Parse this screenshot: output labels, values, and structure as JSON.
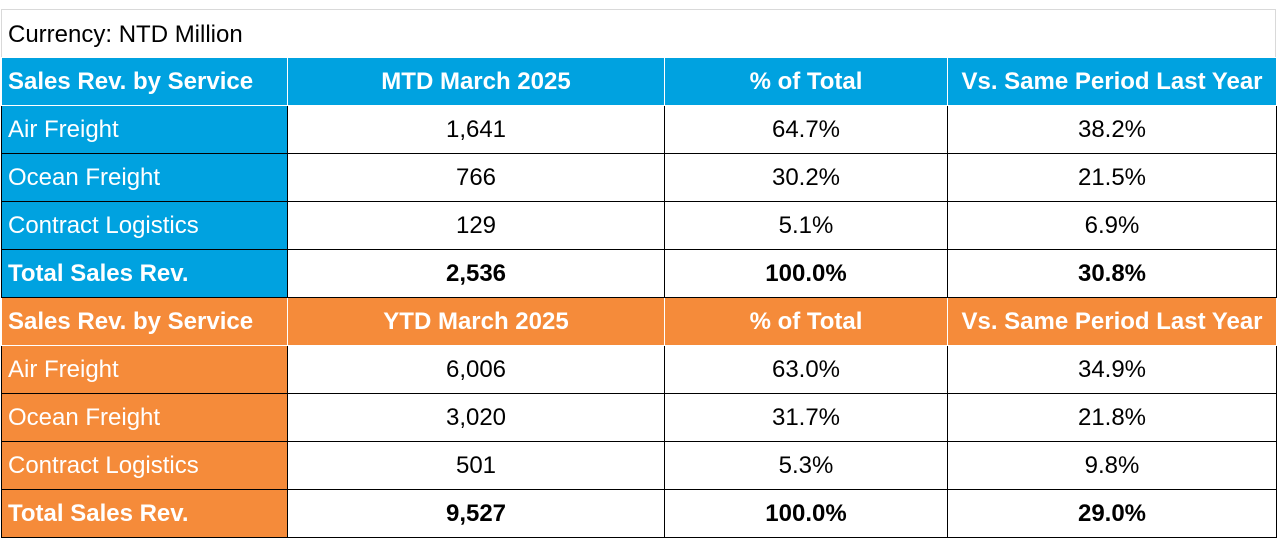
{
  "currency_note": "Currency: NTD Million",
  "colors": {
    "mtd_accent": "#00a2e0",
    "ytd_accent": "#f58b3a"
  },
  "mtd": {
    "headers": [
      "Sales Rev. by Service",
      "MTD March 2025",
      "% of Total",
      "Vs. Same Period Last Year"
    ],
    "rows": [
      {
        "service": "Air Freight",
        "value": "1,641",
        "pct": "64.7%",
        "yoy": "38.2%"
      },
      {
        "service": "Ocean Freight",
        "value": "766",
        "pct": "30.2%",
        "yoy": "21.5%"
      },
      {
        "service": "Contract Logistics",
        "value": "129",
        "pct": "5.1%",
        "yoy": "6.9%"
      }
    ],
    "total": {
      "service": "Total Sales Rev.",
      "value": "2,536",
      "pct": "100.0%",
      "yoy": "30.8%"
    }
  },
  "ytd": {
    "headers": [
      "Sales Rev. by Service",
      "YTD March 2025",
      "% of Total",
      "Vs. Same Period Last Year"
    ],
    "rows": [
      {
        "service": "Air Freight",
        "value": "6,006",
        "pct": "63.0%",
        "yoy": "34.9%"
      },
      {
        "service": "Ocean Freight",
        "value": "3,020",
        "pct": "31.7%",
        "yoy": "21.8%"
      },
      {
        "service": "Contract Logistics",
        "value": "501",
        "pct": "5.3%",
        "yoy": "9.8%"
      }
    ],
    "total": {
      "service": "Total Sales Rev.",
      "value": "9,527",
      "pct": "100.0%",
      "yoy": "29.0%"
    }
  }
}
